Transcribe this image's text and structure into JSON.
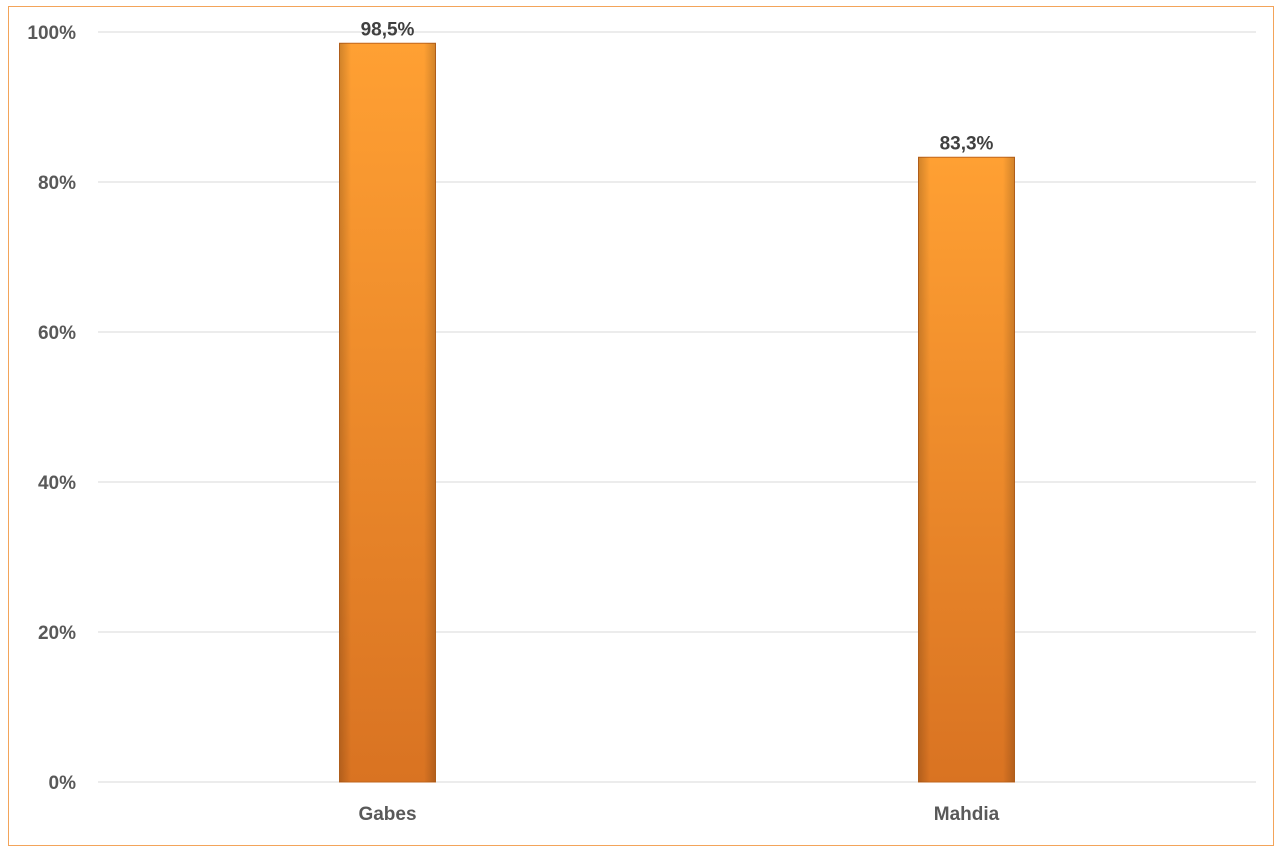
{
  "chart_data": {
    "type": "bar",
    "categories": [
      "Gabes",
      "Mahdia"
    ],
    "values": [
      98.5,
      83.3
    ],
    "data_labels": [
      "98,5%",
      "83,3%"
    ],
    "y_ticks": [
      {
        "value": 0,
        "label": "0%"
      },
      {
        "value": 20,
        "label": "20%"
      },
      {
        "value": 40,
        "label": "40%"
      },
      {
        "value": 60,
        "label": "60%"
      },
      {
        "value": 80,
        "label": "80%"
      },
      {
        "value": 100,
        "label": "100%"
      }
    ],
    "ylim": [
      0,
      100
    ],
    "grid": true,
    "legend": "none",
    "title": "",
    "xlabel": "",
    "ylabel": "",
    "colors": {
      "bar_top": "#ffa033",
      "bar_bottom": "#d97322",
      "bar_edge": "#c0661c",
      "gridline": "#d9d9d9",
      "frame": "#f3a45a",
      "text": "#595959"
    }
  }
}
